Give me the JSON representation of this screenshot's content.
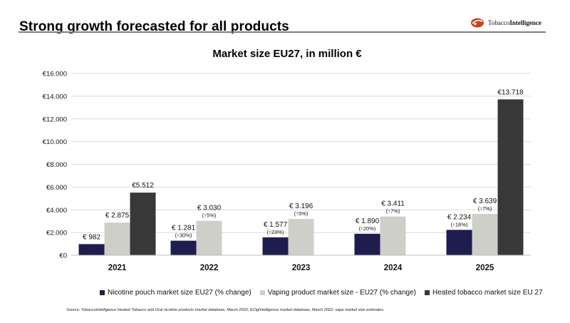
{
  "header": {
    "title": "Strong growth forecasted for all products",
    "logo_text_regular": "Tobacco",
    "logo_text_bold": "Intelligence"
  },
  "chart_data": {
    "type": "bar",
    "title": "Market size EU27, in million €",
    "categories": [
      "2021",
      "2022",
      "2023",
      "2024",
      "2025"
    ],
    "ylim": [
      0,
      16000
    ],
    "yticks": [
      "€0",
      "€2.000",
      "€4.000",
      "€6.000",
      "€8.000",
      "€10.000",
      "€12.000",
      "€14.000",
      "€16.000"
    ],
    "grid": true,
    "legend_position": "bottom",
    "series": [
      {
        "name": "Nicotine pouch market size EU27 (% change)",
        "color": "#1f1d4d",
        "values": [
          982,
          1281,
          1577,
          1890,
          2234
        ],
        "labels": [
          "€ 982",
          "€ 1.281",
          "€ 1.577",
          "€ 1.890",
          "€ 2.234"
        ],
        "changes": [
          "",
          "(↑30%)",
          "(↑23%)",
          "(↑20%)",
          "(↑18%)"
        ]
      },
      {
        "name": "Vaping product market size - EU27 (% change)",
        "color": "#cfcfc9",
        "values": [
          2875,
          3030,
          3196,
          3411,
          3639
        ],
        "labels": [
          "€ 2.875",
          "€ 3.030",
          "€ 3.196",
          "€ 3.411",
          "€ 3.639"
        ],
        "changes": [
          "",
          "(↑5%)",
          "(↑5%)",
          "(↑7%)",
          "(↑7%)"
        ]
      },
      {
        "name": "Heated tobacco market size EU 27",
        "color": "#383838",
        "values": [
          5512,
          null,
          null,
          null,
          13718
        ],
        "labels": [
          "€5.512",
          "",
          "",
          "",
          "€13.718"
        ],
        "changes": [
          "",
          "",
          "",
          "",
          ""
        ]
      }
    ]
  },
  "footer": {
    "source": "Source: TobaccoIntelligence Heated Tobacco and Oral nicotine products market database, March 2022; ECigIntelligence market database, March 2022: vape market size estimates"
  }
}
